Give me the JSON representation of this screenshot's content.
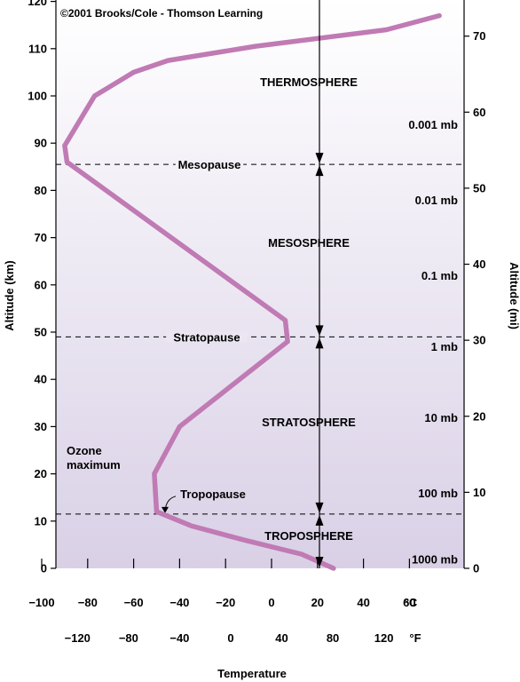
{
  "chart_data": {
    "type": "line",
    "copyright": "©2001 Brooks/Cole - Thomson Learning",
    "xlabel": "Temperature",
    "ylabel_left": "Altitude (km)",
    "ylabel_right": "Altitude (mi)",
    "x_celsius_ticks": [
      -100,
      -80,
      -60,
      -40,
      -20,
      0,
      20,
      40,
      60
    ],
    "x_celsius_unit": "°C",
    "x_fahrenheit_ticks": [
      -120,
      -80,
      -40,
      0,
      40,
      80,
      120
    ],
    "x_fahrenheit_unit": "°F",
    "y_km_ticks": [
      0,
      10,
      20,
      30,
      40,
      50,
      60,
      70,
      80,
      90,
      100,
      110,
      120
    ],
    "y_mi_ticks": [
      0,
      10,
      20,
      30,
      40,
      50,
      60,
      70
    ],
    "ylim_km": [
      0,
      120
    ],
    "xlim_celsius": [
      -100,
      80
    ],
    "temperature_profile": {
      "x_celsius": [
        27,
        13,
        -12,
        -35,
        -50,
        -51,
        -40,
        7,
        6,
        -89,
        -90,
        -77,
        -60,
        -45,
        -7,
        50,
        73
      ],
      "y_km": [
        0,
        3,
        6,
        9,
        12,
        20,
        30,
        48,
        52.5,
        86,
        89.5,
        100,
        105,
        107.5,
        110.5,
        114,
        117
      ]
    },
    "layers": [
      {
        "name": "THERMOSPHERE",
        "altitude_km": 103
      },
      {
        "name": "MESOSPHERE",
        "altitude_km": 69
      },
      {
        "name": "STRATOSPHERE",
        "altitude_km": 31
      },
      {
        "name": "TROPOSPHERE",
        "altitude_km": 7
      }
    ],
    "boundaries": [
      {
        "name": "Mesopause",
        "altitude_km": 85.5
      },
      {
        "name": "Stratopause",
        "altitude_km": 49
      },
      {
        "name": "Tropopause",
        "altitude_km": 11.5
      }
    ],
    "pressure_labels": [
      {
        "label": "0.001 mb",
        "altitude_km": 94
      },
      {
        "label": "0.01 mb",
        "altitude_km": 78
      },
      {
        "label": "0.1 mb",
        "altitude_km": 62
      },
      {
        "label": "1 mb",
        "altitude_km": 47
      },
      {
        "label": "10 mb",
        "altitude_km": 32
      },
      {
        "label": "100 mb",
        "altitude_km": 16
      },
      {
        "label": "1000 mb",
        "altitude_km": 2
      }
    ],
    "annotations": [
      {
        "text": "Ozone",
        "x_celsius": -95,
        "altitude_km": 25
      },
      {
        "text": "maximum",
        "x_celsius": -95,
        "altitude_km": 22
      }
    ],
    "colors": {
      "curve": "#c07ab4",
      "background_top": "#ffffff",
      "background_bottom": "#d9d0e6"
    }
  }
}
